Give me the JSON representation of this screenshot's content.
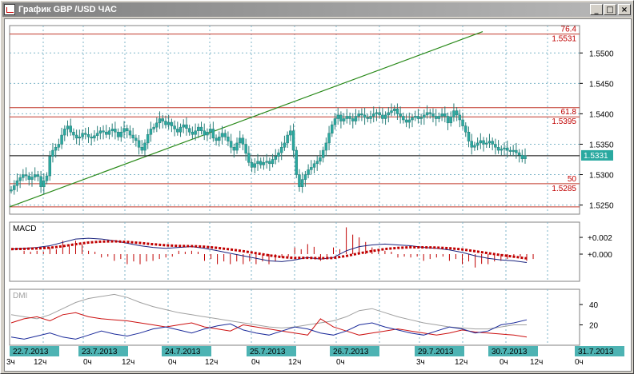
{
  "window": {
    "title": "График GBP /USD ЧАС",
    "minimize_glyph": "_",
    "maximize_glyph": "□",
    "close_glyph": "×"
  },
  "icons": [
    "chart-window-icon",
    "minimize-icon",
    "maximize-icon",
    "close-icon"
  ],
  "colors": {
    "candle_body": "#2aa9a0",
    "trend_line": "#2a8a1a",
    "level_line": "#c0392b",
    "price_line": "#000000",
    "grid": "#7fb5c8",
    "macd_line": "#1a237e",
    "macd_signal": "#c00000",
    "dmi_plus": "#1a2a9a",
    "dmi_minus": "#cc1010",
    "adx": "#a0a0a0",
    "date_tag": "#4db3b3"
  },
  "price_panel": {
    "fib_labels": [
      "76.4",
      "61.8",
      "50"
    ],
    "level_labels": [
      "1.5531",
      "1.5395",
      "1.5285"
    ],
    "current_price": "1.5331",
    "axis_ticks": [
      "1.5500",
      "1.5450",
      "1.5400",
      "1.5350",
      "1.5300",
      "1.5250"
    ]
  },
  "macd_panel": {
    "label": "MACD",
    "axis_ticks": [
      "+0.002",
      "+0.000"
    ]
  },
  "dmi_panel": {
    "label": "DMI",
    "axis_ticks": [
      "40",
      "20"
    ]
  },
  "time_axis": {
    "date_tags": [
      "22.7.2013",
      "23.7.2013",
      "24.7.2013",
      "25.7.2013",
      "26.7.2013",
      "29.7.2013",
      "30.7.2013",
      "31.7.2013"
    ],
    "hour_labels": [
      "3ч",
      "12ч",
      "0ч",
      "12ч",
      "0ч",
      "12ч",
      "0ч",
      "12ч",
      "0ч",
      "3ч",
      "12ч",
      "0ч",
      "12ч",
      "0ч"
    ]
  },
  "chart_data": {
    "type": "candlestick",
    "title": "График GBP /USD ЧАС",
    "ylim": [
      1.5235,
      1.5545
    ],
    "price_levels": [
      {
        "label": "76.4",
        "value": 1.5531
      },
      {
        "label": "61.8",
        "value": 1.5395
      },
      {
        "label": "50",
        "value": 1.5285
      },
      {
        "label": "",
        "value": 1.541
      },
      {
        "label": "",
        "value": 1.5247
      }
    ],
    "current_price": 1.5331,
    "trend_line": {
      "from": {
        "date": "22.7.2013 03:00",
        "price": 1.5247
      },
      "to": {
        "date": "30.7.2013 00:00",
        "price": 1.5535
      }
    },
    "candles_close": [
      1.5275,
      1.5282,
      1.529,
      1.5295,
      1.53,
      1.5298,
      1.5292,
      1.5296,
      1.53,
      1.5297,
      1.528,
      1.529,
      1.5298,
      1.533,
      1.534,
      1.5345,
      1.535,
      1.5365,
      1.5375,
      1.538,
      1.537,
      1.5365,
      1.536,
      1.5362,
      1.5368,
      1.5366,
      1.5362,
      1.536,
      1.5364,
      1.5368,
      1.5372,
      1.537,
      1.5366,
      1.5372,
      1.5375,
      1.537,
      1.5362,
      1.537,
      1.5376,
      1.5372,
      1.5365,
      1.536,
      1.5356,
      1.5345,
      1.534,
      1.5352,
      1.5366,
      1.5375,
      1.5378,
      1.5385,
      1.5392,
      1.5388,
      1.5382,
      1.5386,
      1.538,
      1.5375,
      1.537,
      1.5378,
      1.5382,
      1.5376,
      1.537,
      1.5366,
      1.5372,
      1.5378,
      1.5372,
      1.5365,
      1.537,
      1.5375,
      1.536,
      1.5356,
      1.5362,
      1.5368,
      1.5362,
      1.5355,
      1.5345,
      1.534,
      1.5352,
      1.536,
      1.535,
      1.5335,
      1.532,
      1.5312,
      1.5318,
      1.5322,
      1.5316,
      1.532,
      1.5322,
      1.5318,
      1.5325,
      1.533,
      1.5336,
      1.5345,
      1.5352,
      1.5365,
      1.5372,
      1.534,
      1.53,
      1.528,
      1.5292,
      1.53,
      1.5308,
      1.5312,
      1.5318,
      1.5322,
      1.5328,
      1.534,
      1.5352,
      1.5368,
      1.5382,
      1.5392,
      1.5398,
      1.5388,
      1.5392,
      1.5396,
      1.5392,
      1.5388,
      1.5396,
      1.54,
      1.5398,
      1.5394,
      1.5392,
      1.5396,
      1.54,
      1.5402,
      1.5398,
      1.5392,
      1.5398,
      1.5402,
      1.5405,
      1.5408,
      1.54,
      1.5396,
      1.539,
      1.5386,
      1.539,
      1.5394,
      1.5396,
      1.5392,
      1.5394,
      1.5398,
      1.5402,
      1.54,
      1.5396,
      1.5392,
      1.5396,
      1.54,
      1.5396,
      1.5385,
      1.5395,
      1.5405,
      1.5398,
      1.539,
      1.538,
      1.537,
      1.5355,
      1.5345,
      1.5348,
      1.5352,
      1.5356,
      1.535,
      1.5352,
      1.5355,
      1.535,
      1.5345,
      1.534,
      1.5342,
      1.5344,
      1.534,
      1.5338,
      1.534,
      1.5336,
      1.5332,
      1.5326,
      1.5331
    ],
    "macd_series": [
      0.0006,
      0.0007,
      0.0008,
      0.001,
      0.0014,
      0.0018,
      0.0019,
      0.0018,
      0.0016,
      0.0013,
      0.001,
      0.0008,
      0.0007,
      0.0008,
      0.0009,
      0.0007,
      0.0004,
      0.0001,
      -0.0002,
      -0.0005,
      -0.0008,
      -0.0009,
      -0.0007,
      -0.0004,
      -0.0006,
      -0.0004,
      0.0004,
      0.0009,
      0.0011,
      0.0012,
      0.0011,
      0.001,
      0.0008,
      0.0007,
      0.0005,
      0.0002,
      -0.0002,
      -0.0005,
      -0.0007,
      -0.0008,
      -0.001
    ],
    "dmi_plus": [
      8,
      6,
      9,
      12,
      8,
      6,
      10,
      14,
      11,
      9,
      12,
      16,
      18,
      15,
      12,
      16,
      19,
      21,
      15,
      12,
      10,
      14,
      18,
      16,
      12,
      10,
      14,
      20,
      22,
      18,
      15,
      12,
      10,
      14,
      18,
      16,
      12,
      14,
      20,
      22,
      25
    ],
    "dmi_minus": [
      22,
      26,
      28,
      24,
      30,
      32,
      28,
      26,
      25,
      24,
      22,
      20,
      18,
      20,
      22,
      18,
      16,
      14,
      20,
      18,
      16,
      14,
      12,
      10,
      26,
      18,
      14,
      10,
      12,
      14,
      16,
      14,
      12,
      10,
      12,
      15,
      13,
      12,
      11,
      10,
      8
    ],
    "adx": [
      30,
      28,
      26,
      30,
      36,
      42,
      46,
      48,
      50,
      47,
      42,
      38,
      35,
      32,
      30,
      28,
      26,
      24,
      22,
      20,
      18,
      17,
      18,
      20,
      22,
      24,
      28,
      34,
      36,
      32,
      28,
      25,
      22,
      20,
      18,
      17,
      16,
      16,
      18,
      20,
      20
    ]
  }
}
